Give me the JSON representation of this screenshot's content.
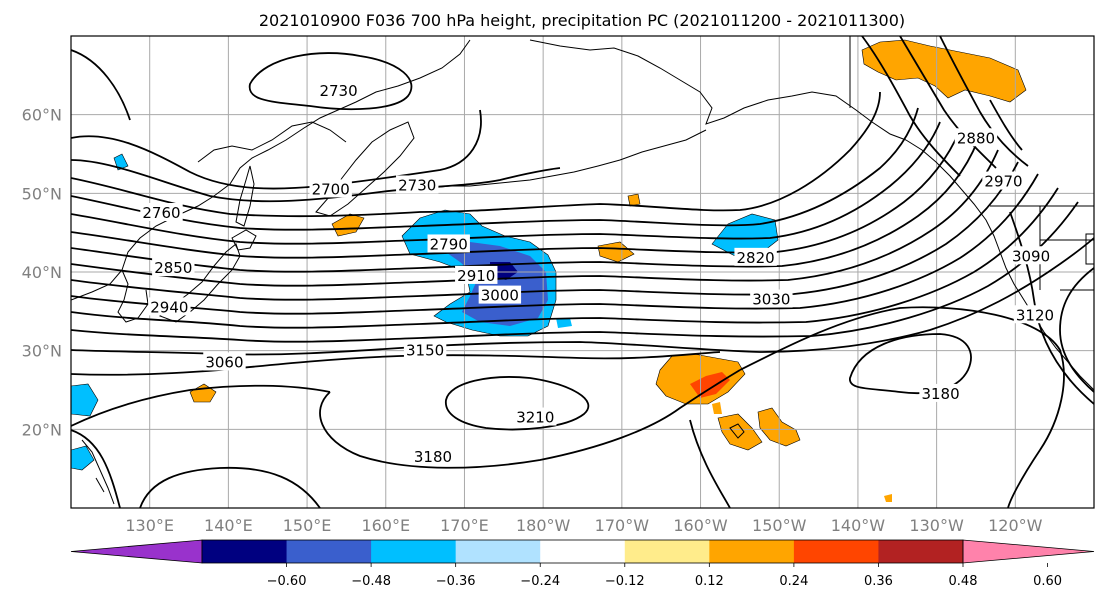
{
  "title": "2021010900 F036 700 hPa height, precipitation PC (2021011200 - 2021011300)",
  "map": {
    "lon_range": [
      120,
      250
    ],
    "lat_range": [
      10,
      70
    ],
    "lon_ticks": [
      130,
      140,
      150,
      160,
      170,
      180,
      190,
      200,
      210,
      220,
      230,
      240
    ],
    "lon_tick_labels": [
      "130°E",
      "140°E",
      "150°E",
      "160°E",
      "170°E",
      "180°W",
      "170°W",
      "160°W",
      "150°W",
      "140°W",
      "130°W",
      "120°W"
    ],
    "lat_ticks": [
      20,
      30,
      40,
      50,
      60
    ],
    "lat_tick_labels": [
      "20°N",
      "30°N",
      "40°N",
      "50°N",
      "60°N"
    ],
    "grid": true
  },
  "contour_labels": [
    {
      "text": "2730",
      "lon": 154,
      "lat": 63
    },
    {
      "text": "2700",
      "lon": 153,
      "lat": 50.5
    },
    {
      "text": "2730",
      "lon": 164,
      "lat": 51
    },
    {
      "text": "2760",
      "lon": 131.5,
      "lat": 47.5
    },
    {
      "text": "2790",
      "lon": 168,
      "lat": 43.5
    },
    {
      "text": "2850",
      "lon": 133,
      "lat": 40.5
    },
    {
      "text": "2910",
      "lon": 171.5,
      "lat": 39.5
    },
    {
      "text": "3000",
      "lon": 174.5,
      "lat": 37
    },
    {
      "text": "2940",
      "lon": 132.5,
      "lat": 35.5
    },
    {
      "text": "3060",
      "lon": 139.5,
      "lat": 28.5
    },
    {
      "text": "3150",
      "lon": 165,
      "lat": 30
    },
    {
      "text": "3210",
      "lon": 179,
      "lat": 21.5
    },
    {
      "text": "3180",
      "lon": 166,
      "lat": 16.5
    },
    {
      "text": "2820",
      "lon": 207,
      "lat": 41.8
    },
    {
      "text": "3030",
      "lon": 209,
      "lat": 36.5
    },
    {
      "text": "3180",
      "lon": 230.5,
      "lat": 24.5
    },
    {
      "text": "2880",
      "lon": 235,
      "lat": 57
    },
    {
      "text": "2970",
      "lon": 238.5,
      "lat": 51.5
    },
    {
      "text": "3090",
      "lon": 242,
      "lat": 42
    },
    {
      "text": "3120",
      "lon": 242.5,
      "lat": 34.5
    }
  ],
  "colorbar": {
    "colors": [
      "#9932cc",
      "#000080",
      "#3a5fcd",
      "#00bfff",
      "#b0e2ff",
      "#ffffff",
      "#ffec8b",
      "#ffa500",
      "#ff4500",
      "#b22222",
      "#ff82ab"
    ],
    "tick_labels": [
      "-0.60",
      "-0.48",
      "-0.36",
      "-0.24",
      "-0.12",
      "0.12",
      "0.24",
      "0.36",
      "0.48",
      "0.60"
    ]
  }
}
